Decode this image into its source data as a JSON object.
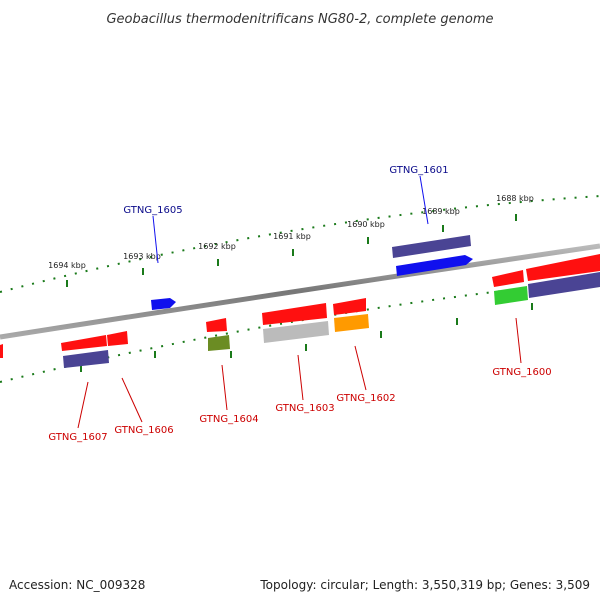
{
  "title": "Geobacillus thermodenitrificans NG80-2, complete genome",
  "footer": {
    "accession": "Accession: NC_009328",
    "summary": "Topology: circular; Length: 3,550,319 bp; Genes: 3,509"
  },
  "colors": {
    "red": "#ff1010",
    "purple": "#4a4494",
    "blue": "#1010ee",
    "green": "#33cc33",
    "olive": "#6b8c23",
    "gray": "#bbbbbb",
    "orange": "#ff9a00",
    "tick": "#1a7a1a",
    "forward_label": "#0a0a8a",
    "reverse_label": "#cc0000",
    "backbone": "#888888"
  },
  "scale_labels": [
    "1694 kbp",
    "1693 kbp",
    "1692 kbp",
    "1691 kbp",
    "1690 kbp",
    "1689 kbp",
    "1688 kbp"
  ],
  "gene_labels": [
    {
      "name": "GTNG_1605",
      "strand": "forward"
    },
    {
      "name": "GTNG_1601",
      "strand": "forward"
    },
    {
      "name": "GTNG_1607",
      "strand": "reverse"
    },
    {
      "name": "GTNG_1606",
      "strand": "reverse"
    },
    {
      "name": "GTNG_1604",
      "strand": "reverse"
    },
    {
      "name": "GTNG_1603",
      "strand": "reverse"
    },
    {
      "name": "GTNG_1602",
      "strand": "reverse"
    },
    {
      "name": "GTNG_1600",
      "strand": "reverse"
    }
  ]
}
